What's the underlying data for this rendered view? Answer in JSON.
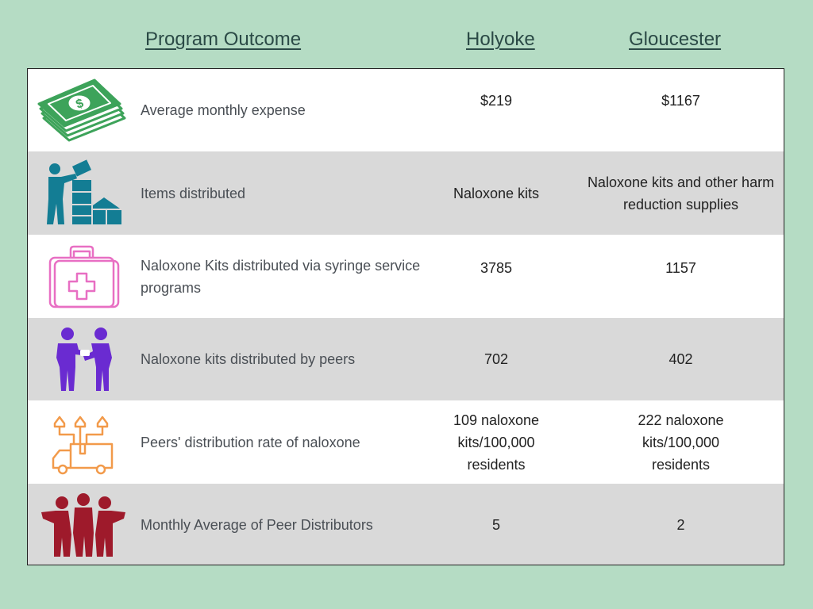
{
  "header": {
    "outcome": "Program Outcome",
    "holyoke": "Holyoke",
    "gloucester": "Gloucester"
  },
  "rows": [
    {
      "icon": "money-stack-icon",
      "label": "Average monthly expense",
      "holyoke": "$219",
      "gloucester": "$1167"
    },
    {
      "icon": "person-stacking-boxes-icon",
      "label": "Items distributed",
      "holyoke": "Naloxone kits",
      "gloucester": "Naloxone kits and other harm reduction supplies"
    },
    {
      "icon": "first-aid-kit-icon",
      "label": "Naloxone Kits distributed via syringe service programs",
      "holyoke": "3785",
      "gloucester": "1157"
    },
    {
      "icon": "two-people-handing-icon",
      "label": "Naloxone kits distributed by peers",
      "holyoke": "702",
      "gloucester": "402"
    },
    {
      "icon": "delivery-truck-icon",
      "label": "Peers' distribution rate of naloxone",
      "holyoke": "109 naloxone kits/100,000 residents",
      "gloucester": "222 naloxone kits/100,000 residents"
    },
    {
      "icon": "group-of-people-icon",
      "label": "Monthly Average of Peer Distributors",
      "holyoke": "5",
      "gloucester": "2"
    }
  ],
  "colors": {
    "background": "#b5dcc4",
    "row_alt": "#d9d9d9",
    "money": "#3da35a",
    "stacker": "#137d94",
    "kit": "#e86fc3",
    "peers": "#6a2bd1",
    "truck": "#f29a4a",
    "group": "#9e1a2b"
  }
}
